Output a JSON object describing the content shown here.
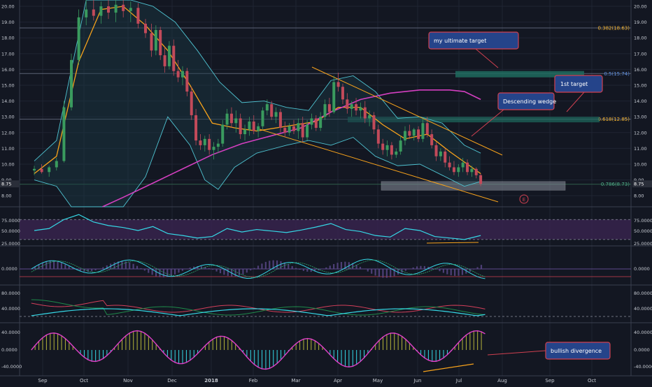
{
  "colors": {
    "background": "#131722",
    "grid": "#1f2433",
    "panel_border": "#3a3f4f",
    "axis_text": "#c8ccd4",
    "candle_up": "#3a9b5e",
    "candle_down": "#c24a5a",
    "ema_orange": "#f7a21b",
    "ma_magenta": "#d43fc0",
    "bollinger": "#4fc3d1",
    "bollinger_fill": "#1b3a44",
    "fib_line": "#5b6275",
    "fib_382": "#f7b733",
    "fib_5": "#5b8de0",
    "fib_618": "#f7b733",
    "fib_786": "#4fb08a",
    "zone_green": "#1e6b5e",
    "zone_grey": "#8a8f9c",
    "rsi_line": "#35d8e6",
    "rsi_band": "#3a2450",
    "macd_hist": "#5d4a8c",
    "adx_red": "#d43f5a",
    "adx_green": "#1f8a4a",
    "adx_cyan": "#35d8e6",
    "osc_magenta": "#e040c8",
    "osc_yellow": "#b5b43a",
    "osc_cyan": "#35d8e6",
    "callout_fill": "#25448a",
    "callout_border": "#d04050",
    "divergence": "#f7a21b"
  },
  "chart_data": {
    "type": "candlestick",
    "x_axis_labels": [
      "Sep",
      "Oct",
      "Nov",
      "Dec",
      "2018",
      "Feb",
      "Mar",
      "Apr",
      "May",
      "Jun",
      "Jul",
      "Aug",
      "Sep",
      "Oct"
    ],
    "price_axis": {
      "ticks": [
        "20.00",
        "19.00",
        "18.00",
        "17.00",
        "16.00",
        "15.00",
        "14.00",
        "13.00",
        "12.00",
        "11.00",
        "10.00",
        "9.00",
        "8.00"
      ],
      "last_price_label": "8.75",
      "ylim": [
        7.3,
        20.4
      ]
    },
    "candles": [
      {
        "t": 0.0,
        "o": 9.6,
        "h": 9.9,
        "l": 9.3,
        "c": 9.7
      },
      {
        "t": 0.5,
        "o": 9.7,
        "h": 10.0,
        "l": 9.4,
        "c": 9.5
      },
      {
        "t": 1.0,
        "o": 9.5,
        "h": 9.9,
        "l": 9.2,
        "c": 9.8
      },
      {
        "t": 1.5,
        "o": 9.8,
        "h": 10.4,
        "l": 9.6,
        "c": 10.2
      },
      {
        "t": 2.0,
        "o": 10.2,
        "h": 14.0,
        "l": 10.1,
        "c": 13.6
      },
      {
        "t": 2.5,
        "o": 13.6,
        "h": 17.0,
        "l": 13.4,
        "c": 16.6
      },
      {
        "t": 3.0,
        "o": 16.6,
        "h": 19.8,
        "l": 16.3,
        "c": 19.3
      },
      {
        "t": 3.5,
        "o": 19.3,
        "h": 20.4,
        "l": 18.8,
        "c": 19.8
      },
      {
        "t": 4.0,
        "o": 19.8,
        "h": 20.4,
        "l": 19.1,
        "c": 19.4
      },
      {
        "t": 4.5,
        "o": 19.4,
        "h": 20.3,
        "l": 18.9,
        "c": 20.0
      },
      {
        "t": 5.0,
        "o": 20.0,
        "h": 20.4,
        "l": 19.2,
        "c": 19.6
      },
      {
        "t": 5.5,
        "o": 19.6,
        "h": 20.4,
        "l": 19.0,
        "c": 20.1
      },
      {
        "t": 6.0,
        "o": 20.1,
        "h": 20.4,
        "l": 19.3,
        "c": 19.7
      },
      {
        "t": 6.5,
        "o": 19.7,
        "h": 20.3,
        "l": 19.0,
        "c": 19.9
      },
      {
        "t": 7.0,
        "o": 19.9,
        "h": 20.2,
        "l": 18.6,
        "c": 18.9
      },
      {
        "t": 7.5,
        "o": 18.9,
        "h": 19.2,
        "l": 18.0,
        "c": 18.3
      },
      {
        "t": 7.9,
        "o": 18.3,
        "h": 18.9,
        "l": 16.8,
        "c": 17.2
      },
      {
        "t": 8.2,
        "o": 17.2,
        "h": 18.8,
        "l": 16.9,
        "c": 18.5
      },
      {
        "t": 8.5,
        "o": 18.5,
        "h": 18.7,
        "l": 16.6,
        "c": 16.9
      },
      {
        "t": 8.8,
        "o": 16.9,
        "h": 17.4,
        "l": 15.8,
        "c": 16.2
      },
      {
        "t": 9.1,
        "o": 16.2,
        "h": 17.8,
        "l": 16.0,
        "c": 17.5
      },
      {
        "t": 9.4,
        "o": 17.5,
        "h": 17.9,
        "l": 15.6,
        "c": 15.9
      },
      {
        "t": 9.7,
        "o": 15.9,
        "h": 16.6,
        "l": 15.2,
        "c": 15.5
      },
      {
        "t": 10.0,
        "o": 15.5,
        "h": 16.2,
        "l": 15.0,
        "c": 15.9
      },
      {
        "t": 10.3,
        "o": 15.9,
        "h": 16.1,
        "l": 14.3,
        "c": 14.6
      },
      {
        "t": 10.6,
        "o": 14.6,
        "h": 14.9,
        "l": 12.8,
        "c": 13.1
      },
      {
        "t": 10.9,
        "o": 13.1,
        "h": 13.5,
        "l": 11.2,
        "c": 11.5
      },
      {
        "t": 11.2,
        "o": 11.5,
        "h": 11.9,
        "l": 10.9,
        "c": 11.2
      },
      {
        "t": 11.5,
        "o": 11.2,
        "h": 11.8,
        "l": 10.8,
        "c": 11.6
      },
      {
        "t": 11.8,
        "o": 11.6,
        "h": 11.9,
        "l": 10.6,
        "c": 10.9
      },
      {
        "t": 12.1,
        "o": 10.9,
        "h": 11.4,
        "l": 10.3,
        "c": 11.1
      },
      {
        "t": 12.4,
        "o": 11.1,
        "h": 11.6,
        "l": 10.7,
        "c": 11.3
      },
      {
        "t": 12.7,
        "o": 11.3,
        "h": 12.8,
        "l": 11.1,
        "c": 12.5
      },
      {
        "t": 13.0,
        "o": 12.5,
        "h": 13.5,
        "l": 12.2,
        "c": 13.2
      },
      {
        "t": 13.3,
        "o": 13.2,
        "h": 13.6,
        "l": 12.3,
        "c": 12.6
      },
      {
        "t": 13.6,
        "o": 12.6,
        "h": 13.4,
        "l": 12.0,
        "c": 12.9
      },
      {
        "t": 13.9,
        "o": 12.9,
        "h": 13.2,
        "l": 11.6,
        "c": 11.9
      },
      {
        "t": 14.2,
        "o": 11.9,
        "h": 12.5,
        "l": 11.5,
        "c": 12.2
      },
      {
        "t": 14.5,
        "o": 12.2,
        "h": 13.0,
        "l": 11.8,
        "c": 12.7
      },
      {
        "t": 14.8,
        "o": 12.7,
        "h": 13.1,
        "l": 11.9,
        "c": 12.1
      },
      {
        "t": 15.1,
        "o": 12.1,
        "h": 12.6,
        "l": 11.7,
        "c": 12.4
      },
      {
        "t": 15.4,
        "o": 12.4,
        "h": 13.6,
        "l": 12.2,
        "c": 13.4
      },
      {
        "t": 15.7,
        "o": 13.4,
        "h": 14.1,
        "l": 13.1,
        "c": 13.8
      },
      {
        "t": 16.0,
        "o": 13.8,
        "h": 14.0,
        "l": 12.8,
        "c": 13.0
      },
      {
        "t": 16.3,
        "o": 13.0,
        "h": 13.6,
        "l": 12.6,
        "c": 13.3
      },
      {
        "t": 16.6,
        "o": 13.3,
        "h": 13.5,
        "l": 12.0,
        "c": 12.3
      },
      {
        "t": 16.9,
        "o": 12.3,
        "h": 12.7,
        "l": 11.7,
        "c": 12.0
      },
      {
        "t": 17.2,
        "o": 12.0,
        "h": 12.6,
        "l": 11.8,
        "c": 12.4
      },
      {
        "t": 17.5,
        "o": 12.4,
        "h": 12.8,
        "l": 11.9,
        "c": 12.1
      },
      {
        "t": 17.8,
        "o": 12.1,
        "h": 12.9,
        "l": 11.6,
        "c": 12.6
      },
      {
        "t": 18.1,
        "o": 12.6,
        "h": 13.0,
        "l": 11.4,
        "c": 11.7
      },
      {
        "t": 18.4,
        "o": 11.7,
        "h": 12.8,
        "l": 11.5,
        "c": 12.5
      },
      {
        "t": 18.7,
        "o": 12.5,
        "h": 13.2,
        "l": 12.2,
        "c": 12.9
      },
      {
        "t": 19.0,
        "o": 12.9,
        "h": 13.1,
        "l": 12.1,
        "c": 12.3
      },
      {
        "t": 19.3,
        "o": 12.3,
        "h": 13.3,
        "l": 12.1,
        "c": 13.0
      },
      {
        "t": 19.6,
        "o": 13.0,
        "h": 14.1,
        "l": 12.8,
        "c": 13.8
      },
      {
        "t": 19.9,
        "o": 13.8,
        "h": 14.2,
        "l": 13.0,
        "c": 13.3
      },
      {
        "t": 20.2,
        "o": 13.3,
        "h": 15.6,
        "l": 13.2,
        "c": 15.2
      },
      {
        "t": 20.5,
        "o": 15.2,
        "h": 15.8,
        "l": 14.6,
        "c": 14.9
      },
      {
        "t": 20.8,
        "o": 14.9,
        "h": 15.1,
        "l": 13.8,
        "c": 14.1
      },
      {
        "t": 21.1,
        "o": 14.1,
        "h": 14.5,
        "l": 13.2,
        "c": 13.5
      },
      {
        "t": 21.4,
        "o": 13.5,
        "h": 14.0,
        "l": 13.0,
        "c": 13.8
      },
      {
        "t": 21.7,
        "o": 13.8,
        "h": 14.2,
        "l": 13.1,
        "c": 13.4
      },
      {
        "t": 22.0,
        "o": 13.4,
        "h": 13.9,
        "l": 12.9,
        "c": 13.6
      },
      {
        "t": 22.3,
        "o": 13.6,
        "h": 14.0,
        "l": 12.6,
        "c": 12.9
      },
      {
        "t": 22.6,
        "o": 12.9,
        "h": 13.4,
        "l": 12.4,
        "c": 13.1
      },
      {
        "t": 22.9,
        "o": 13.1,
        "h": 13.3,
        "l": 11.9,
        "c": 12.2
      },
      {
        "t": 23.2,
        "o": 12.2,
        "h": 12.5,
        "l": 11.0,
        "c": 11.3
      },
      {
        "t": 23.5,
        "o": 11.3,
        "h": 11.6,
        "l": 10.6,
        "c": 10.9
      },
      {
        "t": 23.8,
        "o": 10.9,
        "h": 11.5,
        "l": 10.5,
        "c": 11.2
      },
      {
        "t": 24.1,
        "o": 11.2,
        "h": 11.4,
        "l": 10.3,
        "c": 10.6
      },
      {
        "t": 24.4,
        "o": 10.6,
        "h": 11.0,
        "l": 10.4,
        "c": 10.8
      },
      {
        "t": 24.7,
        "o": 10.8,
        "h": 11.8,
        "l": 10.6,
        "c": 11.5
      },
      {
        "t": 25.0,
        "o": 11.5,
        "h": 12.4,
        "l": 11.2,
        "c": 12.1
      },
      {
        "t": 25.3,
        "o": 12.1,
        "h": 12.5,
        "l": 11.6,
        "c": 11.8
      },
      {
        "t": 25.6,
        "o": 11.8,
        "h": 12.3,
        "l": 11.5,
        "c": 12.2
      },
      {
        "t": 25.9,
        "o": 12.2,
        "h": 12.4,
        "l": 11.4,
        "c": 11.6
      },
      {
        "t": 26.2,
        "o": 11.6,
        "h": 12.9,
        "l": 11.4,
        "c": 12.6
      },
      {
        "t": 26.5,
        "o": 12.6,
        "h": 13.0,
        "l": 11.7,
        "c": 11.9
      },
      {
        "t": 26.8,
        "o": 11.9,
        "h": 12.2,
        "l": 11.0,
        "c": 11.2
      },
      {
        "t": 27.1,
        "o": 11.2,
        "h": 11.4,
        "l": 10.2,
        "c": 10.5
      },
      {
        "t": 27.4,
        "o": 10.5,
        "h": 11.0,
        "l": 10.2,
        "c": 10.8
      },
      {
        "t": 27.7,
        "o": 10.8,
        "h": 11.0,
        "l": 9.8,
        "c": 10.1
      },
      {
        "t": 28.0,
        "o": 10.1,
        "h": 10.5,
        "l": 9.6,
        "c": 9.8
      },
      {
        "t": 28.3,
        "o": 9.8,
        "h": 10.2,
        "l": 9.3,
        "c": 9.5
      },
      {
        "t": 28.6,
        "o": 9.5,
        "h": 10.0,
        "l": 9.2,
        "c": 9.8
      },
      {
        "t": 28.9,
        "o": 9.8,
        "h": 10.4,
        "l": 9.5,
        "c": 10.1
      },
      {
        "t": 29.2,
        "o": 10.1,
        "h": 10.3,
        "l": 9.3,
        "c": 9.5
      },
      {
        "t": 29.5,
        "o": 9.5,
        "h": 9.9,
        "l": 9.2,
        "c": 9.7
      },
      {
        "t": 29.8,
        "o": 9.7,
        "h": 9.8,
        "l": 9.1,
        "c": 9.3
      },
      {
        "t": 30.1,
        "o": 9.3,
        "h": 9.4,
        "l": 8.6,
        "c": 8.75
      }
    ],
    "overlays": {
      "ema_orange": [
        [
          0,
          9.4
        ],
        [
          1.5,
          10.5
        ],
        [
          3,
          16.5
        ],
        [
          4.5,
          19.8
        ],
        [
          6,
          20.0
        ],
        [
          7.5,
          18.8
        ],
        [
          9,
          17.2
        ],
        [
          10.5,
          15.0
        ],
        [
          12,
          12.6
        ],
        [
          13.5,
          12.3
        ],
        [
          15,
          12.1
        ],
        [
          17,
          12.4
        ],
        [
          19,
          12.7
        ],
        [
          20.5,
          13.6
        ],
        [
          22,
          13.6
        ],
        [
          23.5,
          12.5
        ],
        [
          25,
          11.6
        ],
        [
          26.5,
          11.9
        ],
        [
          28,
          10.8
        ],
        [
          29.5,
          9.8
        ],
        [
          30.1,
          9.4
        ]
      ],
      "ma_magenta": [
        [
          4.6,
          7.3
        ],
        [
          6,
          7.9
        ],
        [
          8,
          8.8
        ],
        [
          10,
          9.7
        ],
        [
          12,
          10.6
        ],
        [
          14,
          11.3
        ],
        [
          16,
          11.8
        ],
        [
          18,
          12.3
        ],
        [
          20,
          13.3
        ],
        [
          22,
          14.1
        ],
        [
          24,
          14.5
        ],
        [
          26,
          14.7
        ],
        [
          28,
          14.7
        ],
        [
          29,
          14.6
        ],
        [
          30.1,
          14.1
        ]
      ],
      "bb_upper": [
        [
          0,
          10.2
        ],
        [
          1.5,
          11.5
        ],
        [
          2.5,
          16
        ],
        [
          3.5,
          20.4
        ],
        [
          5,
          20.4
        ],
        [
          6.5,
          20.4
        ],
        [
          8,
          20.0
        ],
        [
          9.5,
          19.0
        ],
        [
          11,
          17.2
        ],
        [
          12.5,
          15.2
        ],
        [
          14,
          13.9
        ],
        [
          15.5,
          14.0
        ],
        [
          17,
          13.6
        ],
        [
          18.5,
          13.4
        ],
        [
          20,
          15.3
        ],
        [
          21.5,
          15.6
        ],
        [
          23,
          14.6
        ],
        [
          24.5,
          12.9
        ],
        [
          26,
          13.0
        ],
        [
          27.5,
          12.6
        ],
        [
          29,
          11.2
        ],
        [
          30.1,
          10.7
        ]
      ],
      "bb_lower": [
        [
          0,
          9.0
        ],
        [
          1.5,
          8.6
        ],
        [
          2.5,
          7.3
        ],
        [
          4,
          7.3
        ],
        [
          6,
          7.3
        ],
        [
          7.5,
          9.2
        ],
        [
          9,
          13.0
        ],
        [
          10.5,
          11.2
        ],
        [
          11.5,
          9.0
        ],
        [
          12.4,
          8.4
        ],
        [
          13.5,
          9.8
        ],
        [
          15,
          10.7
        ],
        [
          17,
          11.2
        ],
        [
          18.5,
          11.5
        ],
        [
          20,
          11.2
        ],
        [
          21.5,
          11.7
        ],
        [
          23,
          10.5
        ],
        [
          24.5,
          9.9
        ],
        [
          26,
          10.0
        ],
        [
          27.5,
          9.3
        ],
        [
          29,
          8.6
        ],
        [
          30.1,
          8.9
        ]
      ]
    },
    "fibonacci_levels": [
      {
        "label": "0.382(18.63)",
        "price": 18.63
      },
      {
        "label": "0.5(15.74)",
        "price": 15.74
      },
      {
        "label": "0.618(12.85)",
        "price": 12.85
      },
      {
        "label": "0.786(8.73)",
        "price": 8.73
      }
    ],
    "annotations": {
      "ultimate_target": "my ultimate target",
      "first_target": "1st target",
      "descending_wedge": "Descending wedge",
      "bullish_divergence": "bullish divergence",
      "event_marker": "E"
    },
    "rsi": {
      "ticks": [
        "75.0000",
        "50.0000",
        "25.0000"
      ],
      "values": [
        [
          0,
          48
        ],
        [
          1,
          52
        ],
        [
          2,
          70
        ],
        [
          3,
          80
        ],
        [
          4,
          65
        ],
        [
          5,
          58
        ],
        [
          6,
          54
        ],
        [
          7,
          48
        ],
        [
          8,
          56
        ],
        [
          9,
          42
        ],
        [
          10,
          38
        ],
        [
          11,
          33
        ],
        [
          12,
          36
        ],
        [
          13,
          52
        ],
        [
          14,
          45
        ],
        [
          15,
          50
        ],
        [
          16,
          47
        ],
        [
          17,
          44
        ],
        [
          18,
          49
        ],
        [
          19,
          55
        ],
        [
          20,
          62
        ],
        [
          21,
          50
        ],
        [
          22,
          46
        ],
        [
          23,
          38
        ],
        [
          24,
          35
        ],
        [
          25,
          52
        ],
        [
          26,
          48
        ],
        [
          27,
          36
        ],
        [
          28,
          33
        ],
        [
          29,
          30
        ],
        [
          30.1,
          38
        ]
      ]
    },
    "macd": {
      "ticks": [
        "0.0000"
      ]
    },
    "adx": {
      "ticks": [
        "80.0000",
        "40.0000"
      ]
    },
    "oscillator": {
      "ticks": [
        "40.0000",
        "0.0000",
        "-40.0000"
      ]
    }
  }
}
